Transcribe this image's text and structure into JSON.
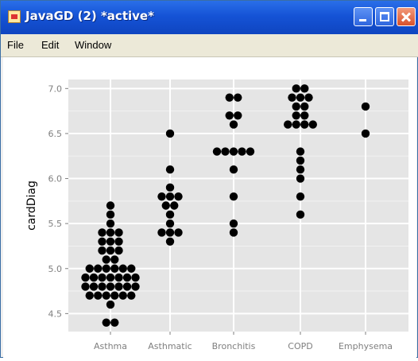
{
  "window": {
    "title": "JavaGD (2) *active*",
    "icon": "java-app-icon",
    "buttons": [
      "minimize-icon",
      "maximize-icon",
      "close-icon"
    ]
  },
  "menubar": {
    "items": [
      "File",
      "Edit",
      "Window"
    ]
  },
  "chart_data": {
    "type": "scatter",
    "title": "",
    "xlabel": "",
    "ylabel": "cardDiag",
    "categories": [
      "Asthma",
      "Asthmatic",
      "Bronchitis",
      "COPD",
      "Emphysema"
    ],
    "ylim": [
      4.3,
      7.1
    ],
    "yticks": [
      "4.5",
      "5.0",
      "5.5",
      "6.0",
      "6.5",
      "7.0"
    ],
    "grid": true,
    "legend": "none",
    "colors": {
      "panel": "#e5e5e5",
      "grid": "#ffffff",
      "point": "#000000",
      "tick_text": "#7f7f7f"
    },
    "series": [
      {
        "category": "Asthma",
        "values": [
          4.4,
          4.4,
          4.6,
          4.7,
          4.7,
          4.7,
          4.7,
          4.7,
          4.7,
          4.8,
          4.8,
          4.8,
          4.8,
          4.8,
          4.8,
          4.8,
          4.9,
          4.9,
          4.9,
          4.9,
          4.9,
          4.9,
          4.9,
          5.0,
          5.0,
          5.0,
          5.0,
          5.0,
          5.0,
          5.1,
          5.1,
          5.2,
          5.2,
          5.2,
          5.3,
          5.3,
          5.3,
          5.4,
          5.4,
          5.4,
          5.5,
          5.6,
          5.7
        ]
      },
      {
        "category": "Asthmatic",
        "values": [
          5.3,
          5.4,
          5.4,
          5.4,
          5.5,
          5.6,
          5.7,
          5.7,
          5.8,
          5.8,
          5.8,
          5.9,
          6.1,
          6.5
        ]
      },
      {
        "category": "Bronchitis",
        "values": [
          5.4,
          5.5,
          5.8,
          6.1,
          6.3,
          6.3,
          6.3,
          6.3,
          6.3,
          6.6,
          6.7,
          6.7,
          6.9,
          6.9
        ]
      },
      {
        "category": "COPD",
        "values": [
          5.6,
          5.8,
          6.0,
          6.1,
          6.2,
          6.3,
          6.6,
          6.6,
          6.6,
          6.6,
          6.7,
          6.7,
          6.8,
          6.8,
          6.9,
          6.9,
          6.9,
          7.0,
          7.0
        ]
      },
      {
        "category": "Emphysema",
        "values": [
          6.5,
          6.8
        ]
      }
    ]
  }
}
